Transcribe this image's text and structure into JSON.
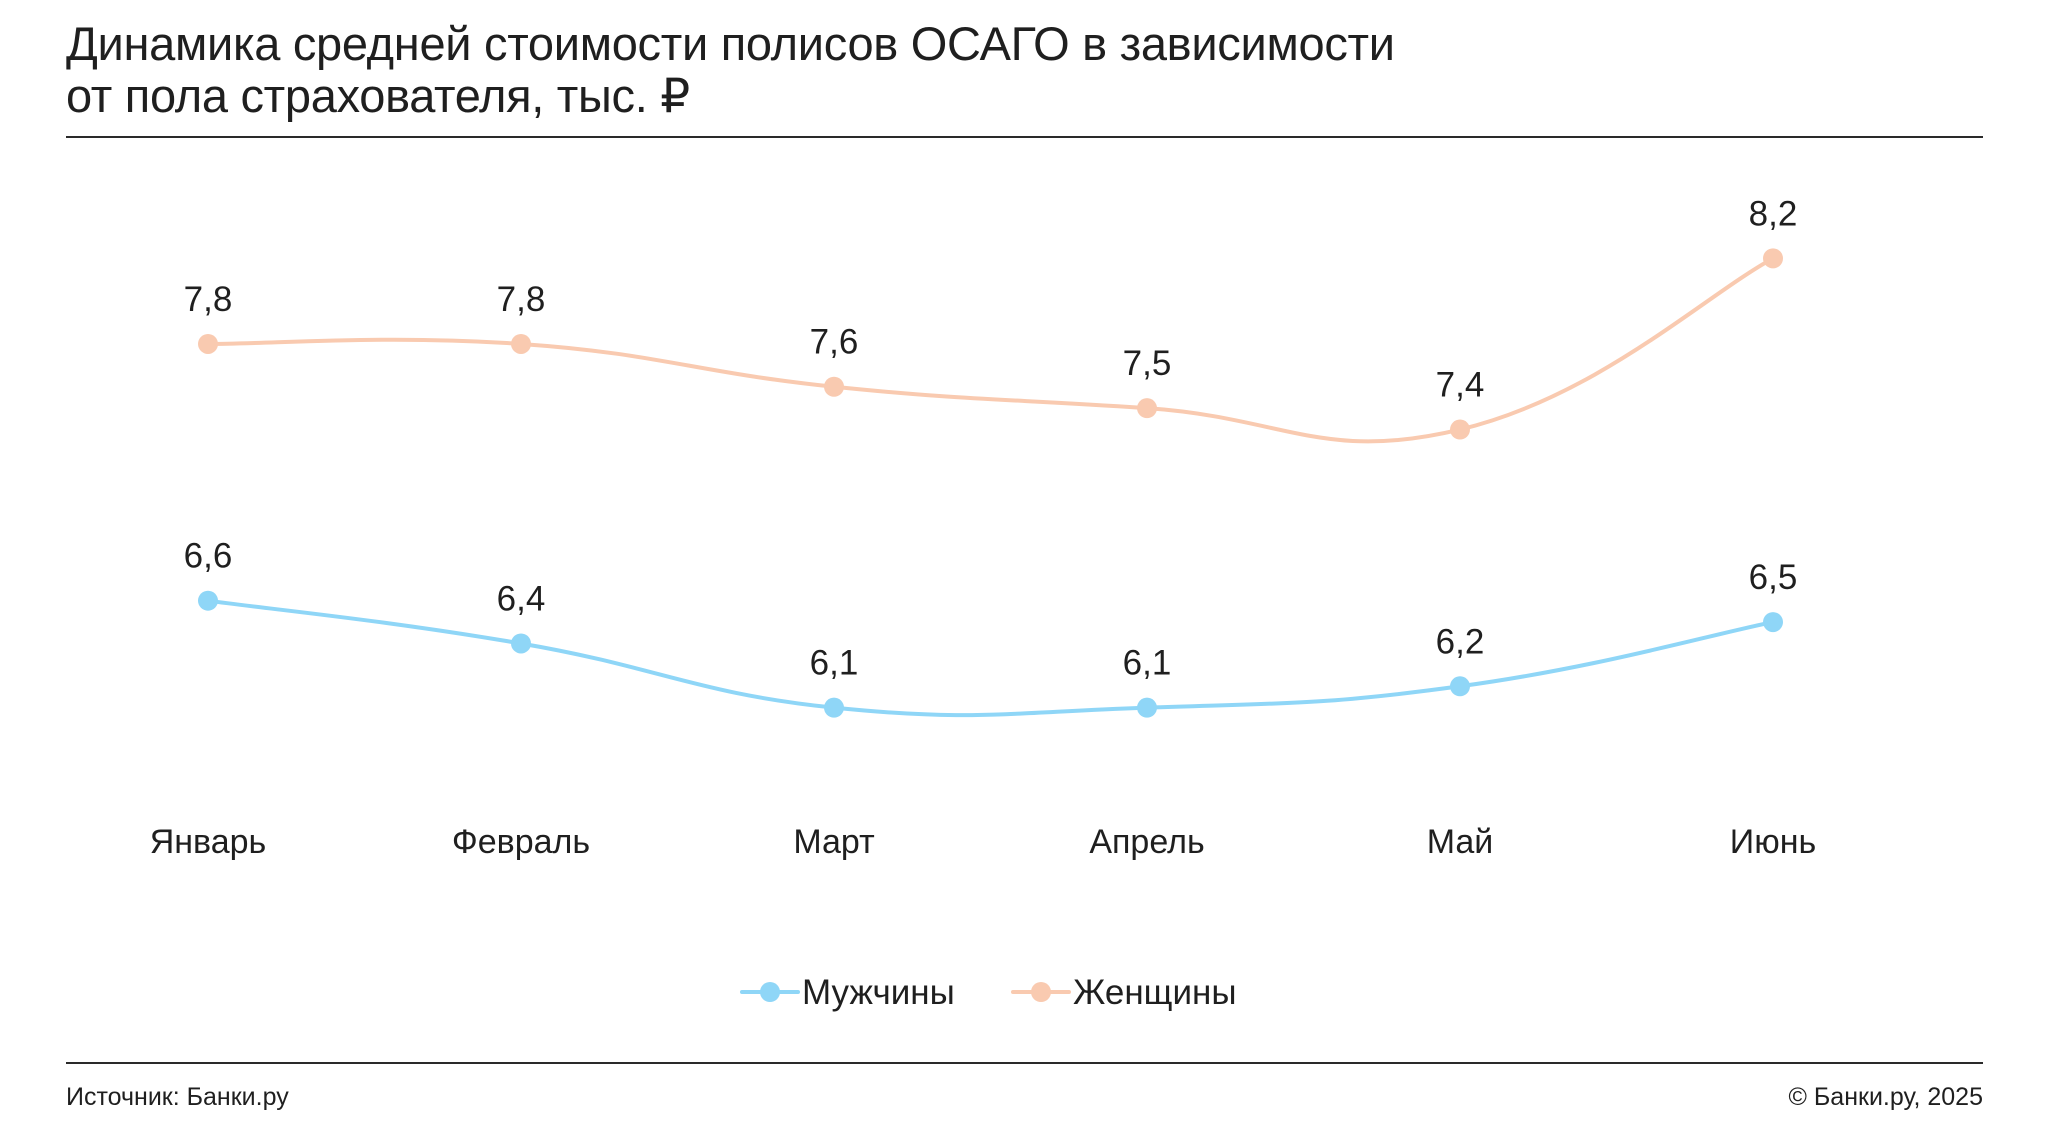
{
  "title_lines": [
    "Динамика средней стоимости полисов ОСАГО в зависимости",
    "от пола страхователя, тыс. ₽"
  ],
  "footer": {
    "source": "Источник: Банки.ру",
    "copyright": "© Банки.ру, 2025"
  },
  "colors": {
    "men": "#8fd6f7",
    "women": "#f9cab0",
    "text": "#1f1f1f",
    "rule": "#2a2a2a"
  },
  "chart_data": {
    "type": "line",
    "title": "Динамика средней стоимости полисов ОСАГО в зависимости от пола страхователя, тыс. ₽",
    "xlabel": "",
    "ylabel": "",
    "categories": [
      "Январь",
      "Февраль",
      "Март",
      "Апрель",
      "Май",
      "Июнь"
    ],
    "series": [
      {
        "name": "Мужчины",
        "values": [
          6.6,
          6.4,
          6.1,
          6.1,
          6.2,
          6.5
        ],
        "labels": [
          "6,6",
          "6,4",
          "6,1",
          "6,1",
          "6,2",
          "6,5"
        ],
        "color": "#8fd6f7"
      },
      {
        "name": "Женщины",
        "values": [
          7.8,
          7.8,
          7.6,
          7.5,
          7.4,
          8.2
        ],
        "labels": [
          "7,8",
          "7,8",
          "7,6",
          "7,5",
          "7,4",
          "8,2"
        ],
        "color": "#f9cab0"
      }
    ],
    "ylim": [
      4.5,
      8.8
    ],
    "grid": false,
    "legend": "bottom-center",
    "smooth": true
  }
}
